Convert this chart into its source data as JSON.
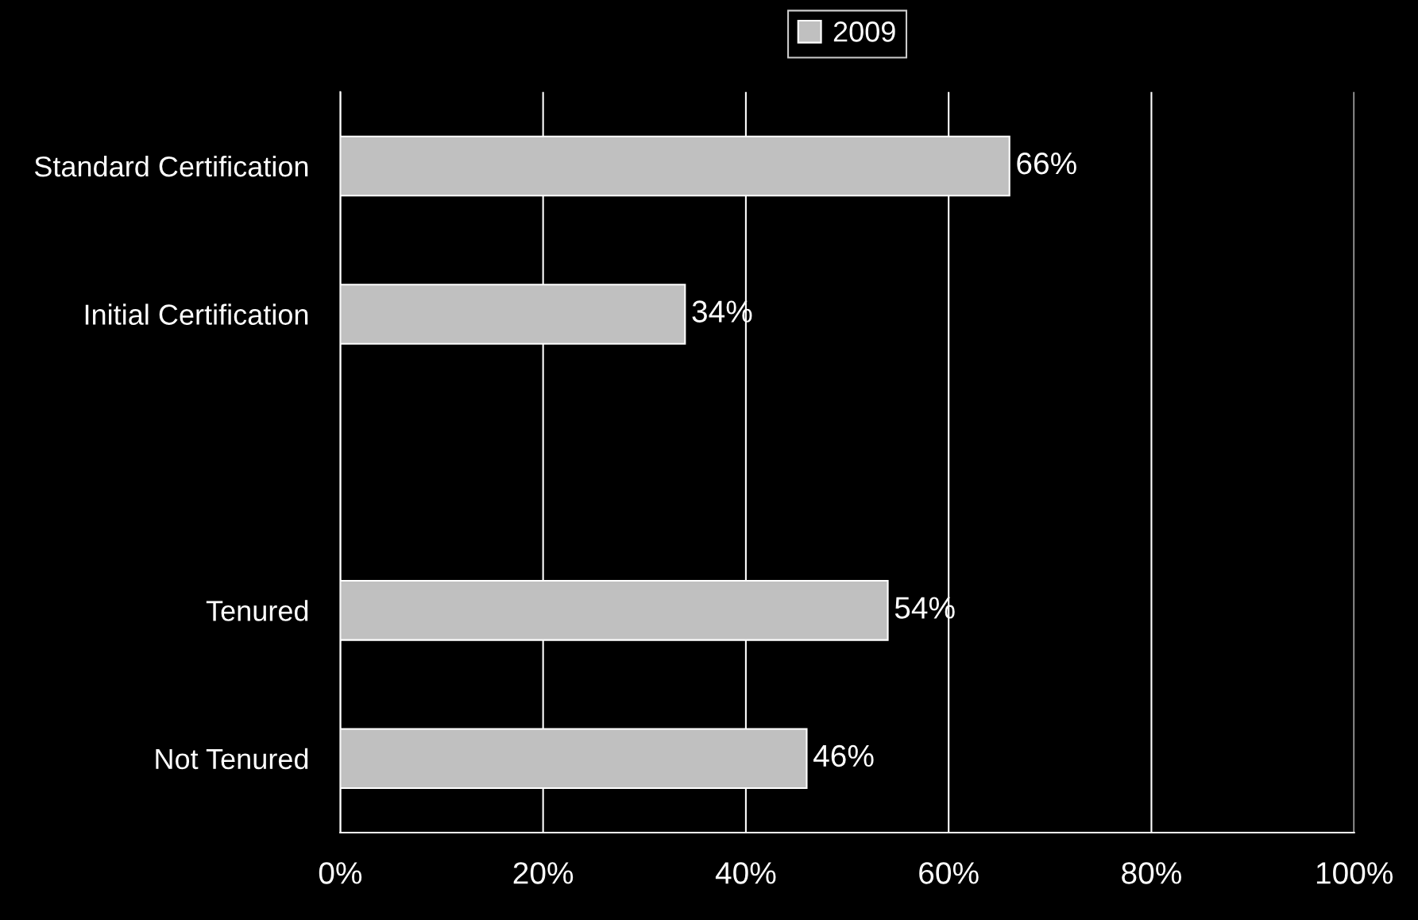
{
  "chart_data": {
    "type": "bar",
    "orientation": "horizontal",
    "categories": [
      "Standard Certification",
      "Initial Certification",
      null,
      "Tenured",
      "Not Tenured"
    ],
    "series": [
      {
        "name": "2009",
        "color": "#c0c0c0",
        "values": [
          66,
          34,
          null,
          54,
          46
        ],
        "value_labels": [
          "66%",
          "34%",
          null,
          "54%",
          "46%"
        ]
      }
    ],
    "xlim": [
      0,
      100
    ],
    "xticks": [
      {
        "value": 0,
        "label": "0%"
      },
      {
        "value": 20,
        "label": "20%"
      },
      {
        "value": 40,
        "label": "40%"
      },
      {
        "value": 60,
        "label": "60%"
      },
      {
        "value": 80,
        "label": "80%"
      },
      {
        "value": 100,
        "label": "100%"
      }
    ],
    "grid": "x",
    "legend": "top"
  }
}
